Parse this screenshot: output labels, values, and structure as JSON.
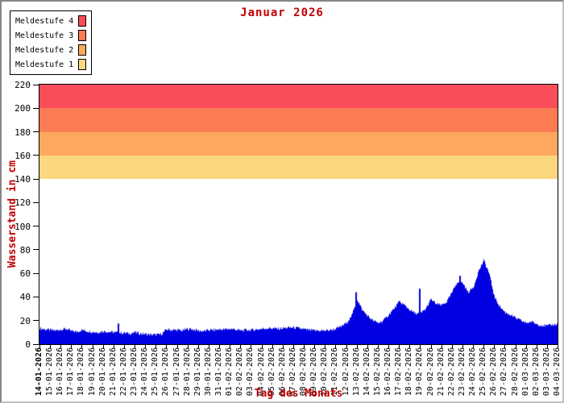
{
  "title": "Januar 2026",
  "colors": {
    "series_blue": "#0000e0",
    "axis_text": "#000000",
    "label_red": "#c00000",
    "frame": "#000000"
  },
  "legend": {
    "items": [
      {
        "label": "Meldestufe 4",
        "color": "#fb4d59"
      },
      {
        "label": "Meldestufe 3",
        "color": "#fb7c52"
      },
      {
        "label": "Meldestufe 2",
        "color": "#fca85e"
      },
      {
        "label": "Meldestufe 1",
        "color": "#fbd780"
      }
    ]
  },
  "chart_data": {
    "type": "area",
    "title": "Januar 2026",
    "xlabel": "Tag des Monats",
    "ylabel": "Wasserstand in cm",
    "ylim": [
      0,
      220
    ],
    "grid": false,
    "legend_position": "top-left",
    "y_ticks": [
      0,
      20,
      40,
      60,
      80,
      100,
      120,
      140,
      160,
      180,
      200,
      220
    ],
    "x_labels": [
      "14-01-2026",
      "15-01-2026",
      "16-01-2026",
      "17-01-2026",
      "18-01-2026",
      "19-01-2026",
      "20-01-2026",
      "21-01-2026",
      "22-01-2026",
      "23-01-2026",
      "24-01-2026",
      "25-01-2026",
      "26-01-2026",
      "27-01-2026",
      "28-01-2026",
      "29-01-2026",
      "30-01-2026",
      "31-01-2026",
      "01-02-2026",
      "02-02-2026",
      "03-02-2026",
      "04-02-2026",
      "05-02-2026",
      "06-02-2026",
      "07-02-2026",
      "08-02-2026",
      "09-02-2026",
      "10-02-2026",
      "11-02-2026",
      "12-02-2026",
      "13-02-2026",
      "14-02-2026",
      "15-02-2026",
      "16-02-2026",
      "17-02-2026",
      "18-02-2026",
      "19-02-2026",
      "20-02-2026",
      "21-02-2026",
      "22-02-2026",
      "23-02-2026",
      "24-02-2026",
      "25-02-2026",
      "26-02-2026",
      "27-02-2026",
      "28-02-2026",
      "01-03-2026",
      "02-03-2026",
      "03-03-2026",
      "04-03-2026"
    ],
    "x_first_label_bold": true,
    "bands": [
      {
        "label": "Meldestufe 4",
        "from": 200,
        "to": 220,
        "color": "#fb4d59"
      },
      {
        "label": "Meldestufe 3",
        "from": 180,
        "to": 200,
        "color": "#fb7c52"
      },
      {
        "label": "Meldestufe 2",
        "from": 160,
        "to": 180,
        "color": "#fca85e"
      },
      {
        "label": "Meldestufe 1",
        "from": 140,
        "to": 160,
        "color": "#fbd780"
      }
    ],
    "series_name": "Wasserstand",
    "series_color": "#0000e0",
    "samples_per_day": 2,
    "values": [
      13.5,
      12.5,
      12,
      11.5,
      12.5,
      13,
      11,
      10.5,
      12,
      11,
      10.5,
      10,
      11,
      10.5,
      10,
      9.5,
      9.5,
      9,
      10,
      9,
      8.5,
      8,
      8,
      8.5,
      12.5,
      12,
      12,
      11.5,
      13,
      12.5,
      11.5,
      11,
      12,
      12,
      12.5,
      12.5,
      13,
      12.5,
      11.5,
      12,
      12,
      12.5,
      13,
      13.5,
      13.5,
      13,
      13.5,
      14,
      14,
      13.5,
      12.5,
      12,
      11.5,
      11.5,
      11.5,
      12,
      13,
      15,
      18,
      24,
      38,
      29,
      24,
      20,
      18,
      20,
      25,
      30,
      36,
      33,
      29,
      26,
      26,
      30,
      38,
      34,
      33,
      36,
      44,
      53,
      52,
      44,
      48,
      62,
      71,
      60,
      40,
      32,
      27,
      25,
      22,
      20,
      18,
      19,
      17,
      16,
      15.5,
      16.5,
      17,
      19
    ],
    "spikes": [
      {
        "day": 7.5,
        "value": 17.5
      },
      {
        "day": 29.95,
        "value": 44
      },
      {
        "day": 36.0,
        "value": 47
      },
      {
        "day": 39.8,
        "value": 58
      }
    ]
  }
}
